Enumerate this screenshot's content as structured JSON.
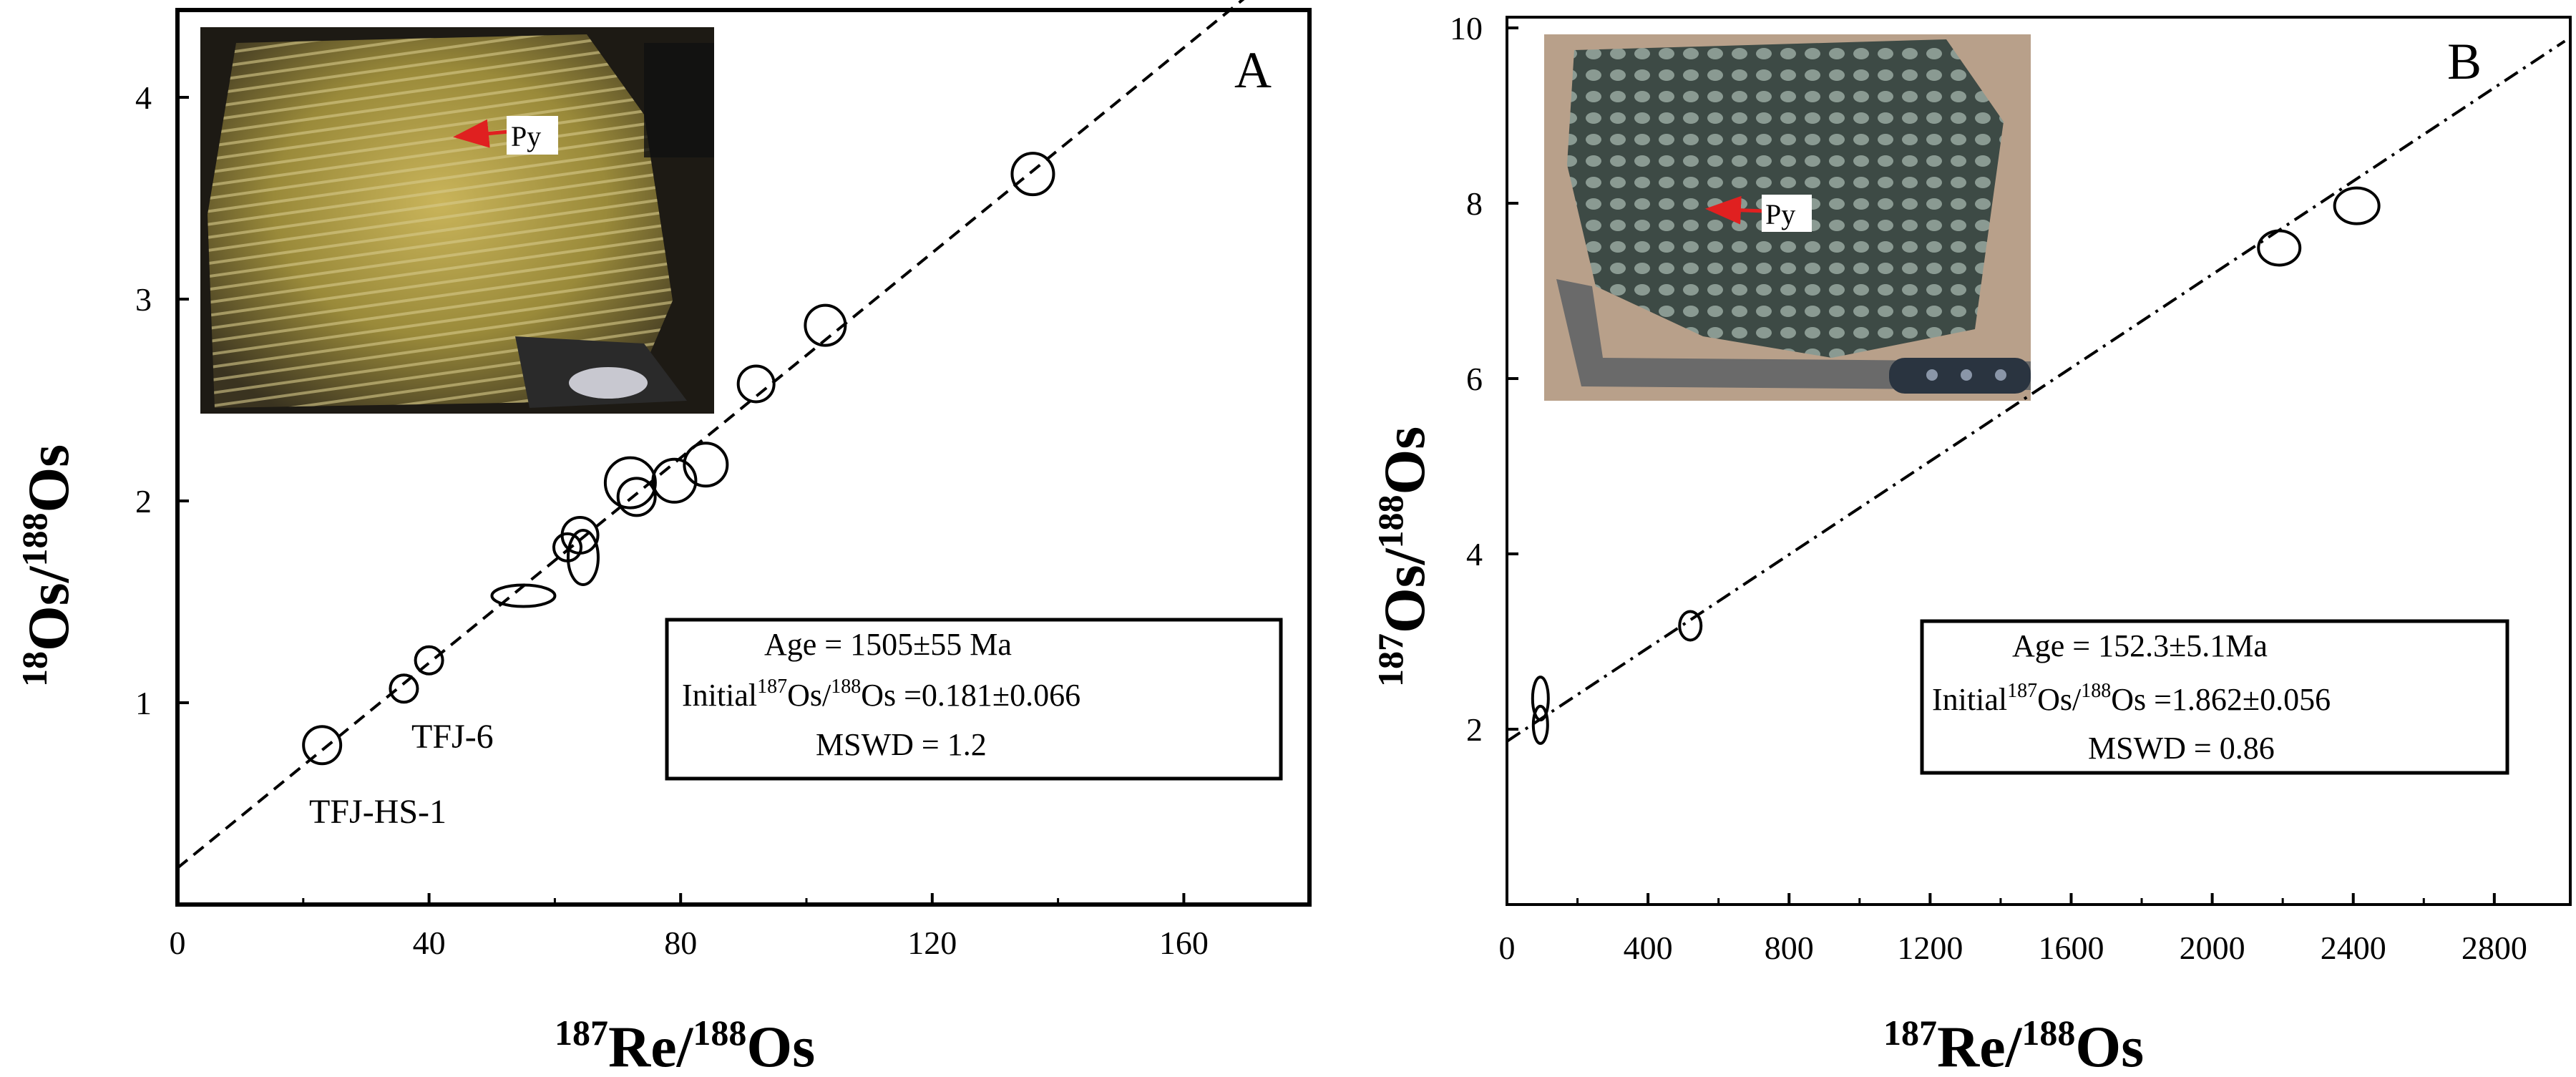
{
  "chart_data": [
    {
      "type": "scatter",
      "panel_label": "A",
      "xlabel": "187Re/188Os",
      "ylabel": "18Os/188Os",
      "xlim": [
        0,
        180
      ],
      "ylim": [
        0,
        4.5
      ],
      "xticks": [
        "0",
        "40",
        "80",
        "120",
        "160"
      ],
      "yticks": [
        "1",
        "2",
        "3",
        "4"
      ],
      "points": [
        {
          "x": 23,
          "y": 0.79
        },
        {
          "x": 36,
          "y": 1.07
        },
        {
          "x": 40,
          "y": 1.21
        },
        {
          "x": 55,
          "y": 1.53
        },
        {
          "x": 62,
          "y": 1.77
        },
        {
          "x": 64,
          "y": 1.83
        },
        {
          "x": 64.5,
          "y": 1.72
        },
        {
          "x": 72,
          "y": 2.09
        },
        {
          "x": 73,
          "y": 2.02
        },
        {
          "x": 79,
          "y": 2.1
        },
        {
          "x": 84,
          "y": 2.18
        },
        {
          "x": 92,
          "y": 2.58
        },
        {
          "x": 103,
          "y": 2.87
        },
        {
          "x": 136,
          "y": 3.62
        }
      ],
      "regression": {
        "intercept": 0.181,
        "endpoint": [
          170,
          4.5
        ]
      },
      "annotations": [
        "TFJ-6",
        "TFJ-HS-1"
      ],
      "info": {
        "age_label": "Age = 1505±55 Ma",
        "initial_prefix": "Initial",
        "initial_sup1": "187",
        "initial_mid": "Os/",
        "initial_sup2": "188",
        "initial_suffix": "Os =0.181±0.066",
        "mswd_label": "MSWD = 1.2"
      },
      "photo_label": "Py",
      "grid": false
    },
    {
      "type": "scatter",
      "panel_label": "B",
      "xlabel": "187Re/188Os",
      "ylabel": "187Os/188Os",
      "xlim": [
        0,
        3000
      ],
      "ylim": [
        0,
        10
      ],
      "xticks": [
        "0",
        "400",
        "800",
        "1200",
        "1600",
        "2000",
        "2400",
        "2800"
      ],
      "yticks": [
        "2",
        "4",
        "6",
        "8",
        "10"
      ],
      "points": [
        {
          "x": 95,
          "y": 2.35
        },
        {
          "x": 95,
          "y": 2.05
        },
        {
          "x": 520,
          "y": 3.18
        },
        {
          "x": 2190,
          "y": 7.49
        },
        {
          "x": 2410,
          "y": 7.97
        }
      ],
      "regression": {
        "intercept": 1.862,
        "endpoint": [
          3000,
          9.85
        ]
      },
      "info": {
        "age_label": "Age = 152.3±5.1Ma",
        "initial_prefix": "Initial",
        "initial_sup1": "187",
        "initial_mid": "Os/",
        "initial_sup2": "188",
        "initial_suffix": "Os =1.862±0.056",
        "mswd_label": "MSWD = 0.86"
      },
      "photo_label": "Py",
      "grid": false
    }
  ]
}
